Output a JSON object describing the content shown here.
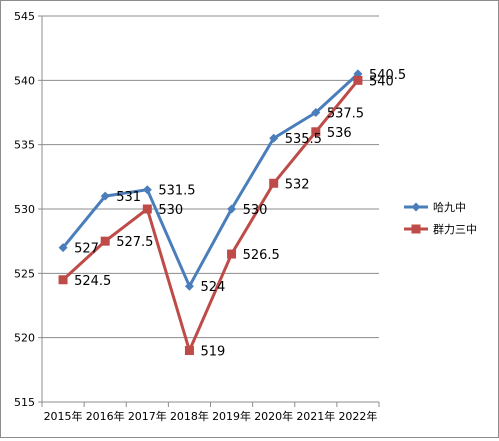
{
  "chart_data": {
    "type": "line",
    "categories": [
      "2015年",
      "2016年",
      "2017年",
      "2018年",
      "2019年",
      "2020年",
      "2021年",
      "2022年"
    ],
    "series": [
      {
        "name": "哈九中",
        "values": [
          527,
          531,
          531.5,
          524,
          530,
          535.5,
          537.5,
          540.5
        ],
        "color": "#4a7ebb",
        "marker": "diamond"
      },
      {
        "name": "群力三中",
        "values": [
          524.5,
          527.5,
          530,
          519,
          526.5,
          532,
          536,
          540
        ],
        "color": "#be4b48",
        "marker": "square"
      }
    ],
    "ylim": [
      515,
      545
    ],
    "yticks": [
      515,
      520,
      525,
      530,
      535,
      540,
      545
    ],
    "grid": true,
    "legend": "right",
    "title": "",
    "xlabel": "",
    "ylabel": ""
  }
}
